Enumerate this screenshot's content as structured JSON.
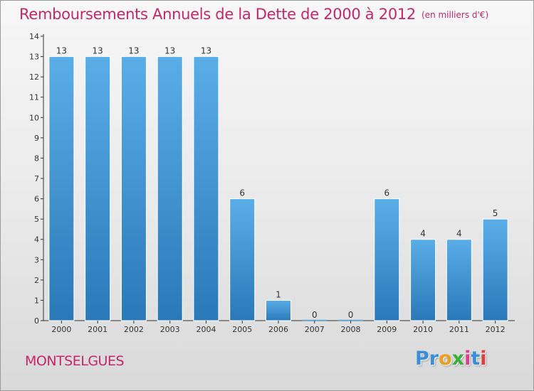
{
  "header": {
    "title": "Remboursements Annuels de la Dette de 2000 à 2012",
    "subtitle": "(en milliers d'€)"
  },
  "footer": {
    "commune": "MONTSELGUES",
    "logo_text": "Proxiti",
    "logo_letters": [
      "P",
      "r",
      "o",
      "x",
      "i",
      "t",
      "i"
    ]
  },
  "colors": {
    "title": "#c4276a",
    "bar_light": "#5aaee8",
    "bar_dark": "#2a78b8",
    "axis": "#333333"
  },
  "chart_data": {
    "type": "bar",
    "title": "Remboursements Annuels de la Dette de 2000 à 2012",
    "subtitle": "(en milliers d'€)",
    "categories": [
      "2000",
      "2001",
      "2002",
      "2003",
      "2004",
      "2005",
      "2006",
      "2007",
      "2008",
      "2009",
      "2010",
      "2011",
      "2012"
    ],
    "values": [
      13,
      13,
      13,
      13,
      13,
      6,
      1,
      0,
      0,
      6,
      4,
      4,
      5
    ],
    "data_labels": [
      "13",
      "13",
      "13",
      "13",
      "13",
      "6",
      "1",
      "0",
      "0",
      "6",
      "4",
      "4",
      "5"
    ],
    "y_ticks": [
      "0",
      "1",
      "2",
      "3",
      "4",
      "5",
      "6",
      "7",
      "8",
      "9",
      "10",
      "11",
      "12",
      "13",
      "14"
    ],
    "ylim": [
      0,
      14
    ],
    "xlabel": "",
    "ylabel": "",
    "grid": false,
    "legend": "none"
  }
}
